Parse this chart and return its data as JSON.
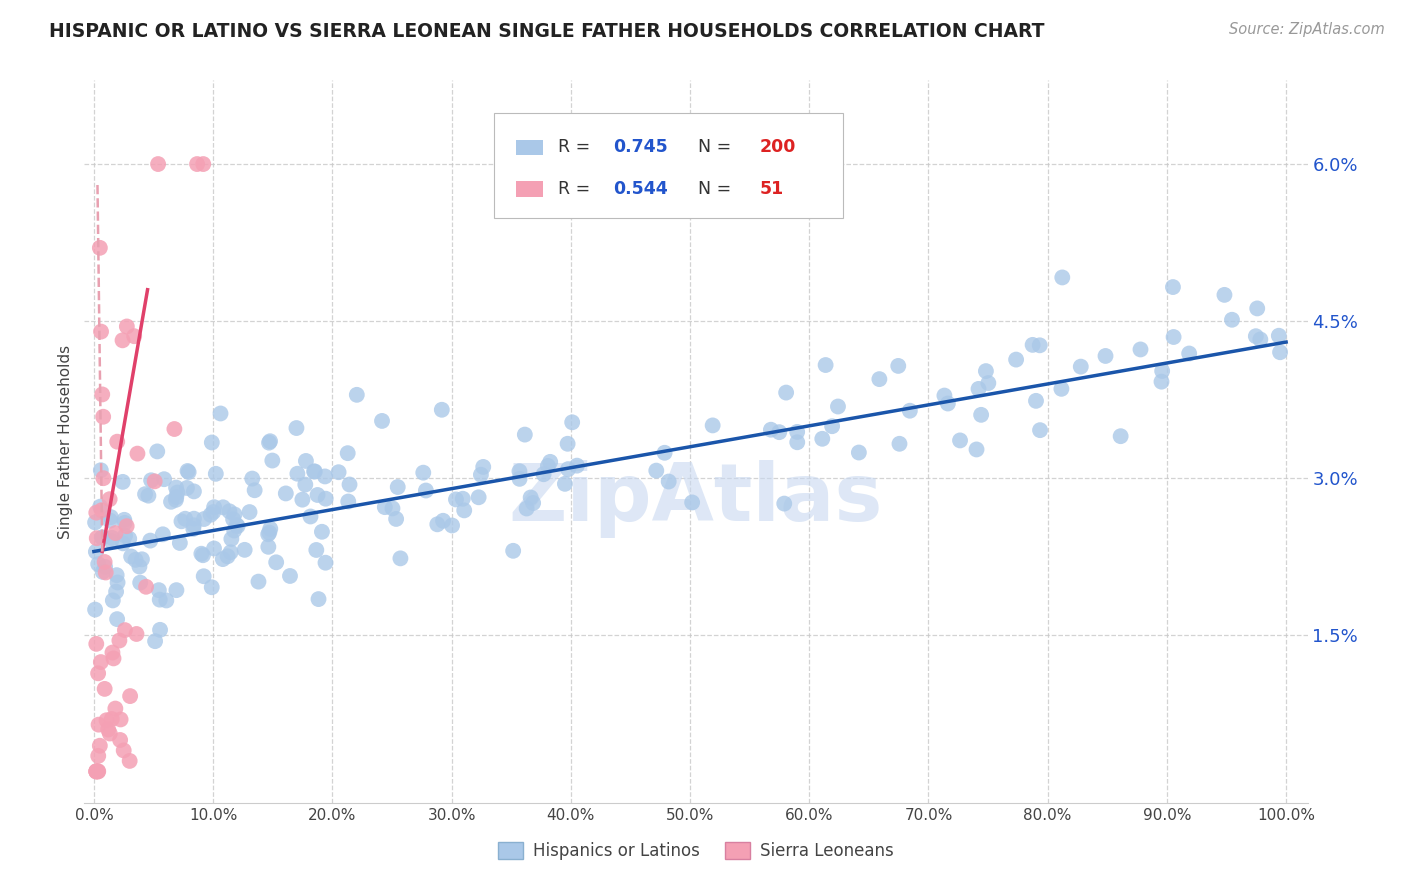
{
  "title": "HISPANIC OR LATINO VS SIERRA LEONEAN SINGLE FATHER HOUSEHOLDS CORRELATION CHART",
  "source": "Source: ZipAtlas.com",
  "ylabel": "Single Father Households",
  "watermark": "ZipAtlas",
  "blue_R": 0.745,
  "blue_N": 200,
  "pink_R": 0.544,
  "pink_N": 51,
  "ylim_low": -0.001,
  "ylim_high": 0.068,
  "yticks": [
    0.015,
    0.03,
    0.045,
    0.06
  ],
  "ytick_labels": [
    "1.5%",
    "3.0%",
    "4.5%",
    "6.0%"
  ],
  "xticks": [
    0.0,
    0.1,
    0.2,
    0.3,
    0.4,
    0.5,
    0.6,
    0.7,
    0.8,
    0.9,
    1.0
  ],
  "xtick_labels": [
    "0.0%",
    "10.0%",
    "20.0%",
    "30.0%",
    "40.0%",
    "50.0%",
    "60.0%",
    "70.0%",
    "80.0%",
    "90.0%",
    "100.0%"
  ],
  "blue_color": "#aac8e8",
  "blue_line_color": "#1a55aa",
  "pink_color": "#f4a0b4",
  "pink_line_color": "#e0406a",
  "pink_line_dashed_color": "#e8a0b0",
  "legend_r_color": "#2255cc",
  "legend_n_color": "#dd2222",
  "title_color": "#222222",
  "grid_color": "#c8c8c8",
  "background_color": "#ffffff",
  "watermark_color": "#c8d8f0",
  "source_color": "#999999"
}
